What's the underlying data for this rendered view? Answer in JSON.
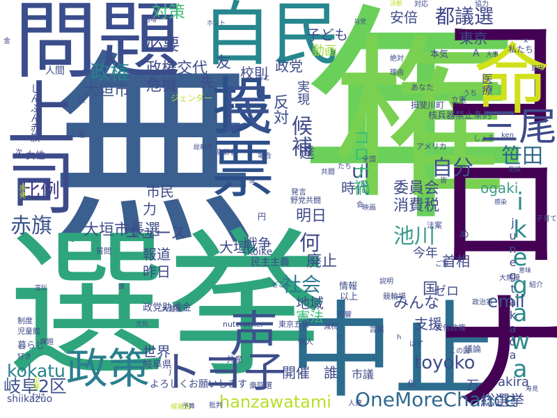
{
  "title": "",
  "words": [
    {
      "text": "無",
      "color": "#3b5f8f",
      "vertical": false
    },
    {
      "text": "選挙",
      "color": "#2fa57d",
      "vertical": false
    },
    {
      "text": "年",
      "color": "#6ad05a",
      "vertical": false
    },
    {
      "text": "問題",
      "color": "#3a4d8c",
      "vertical": false
    },
    {
      "text": "自民",
      "color": "#27878e",
      "vertical": false
    },
    {
      "text": "権",
      "color": "#7ad151",
      "vertical": true
    },
    {
      "text": "中止",
      "color": "#2c6d8e",
      "vertical": false
    },
    {
      "text": "コロナ",
      "color": "#440154",
      "vertical": true
    },
    {
      "text": "命",
      "color": "#d0e11c",
      "vertical": false
    },
    {
      "text": "投票",
      "color": "#2c4f8a",
      "vertical": true
    },
    {
      "text": "上司",
      "color": "#3b4b8a",
      "vertical": true
    },
    {
      "text": "民",
      "color": "#3a5290",
      "vertical": false
    },
    {
      "text": "政策",
      "color": "#2a7f8e",
      "vertical": false
    },
    {
      "text": "トヨ子",
      "color": "#3e4c8a",
      "vertical": false
    },
    {
      "text": "声",
      "color": "#3b528b",
      "vertical": false
    },
    {
      "text": "OneMoreChance",
      "color": "#31688e",
      "vertical": false
    },
    {
      "text": "hanzawatami",
      "color": "#b8de29",
      "vertical": false
    },
    {
      "text": "三尾",
      "color": "#3e4a89",
      "vertical": false
    },
    {
      "text": "ikegawa",
      "color": "#2c8a8c",
      "vertical": true
    },
    {
      "text": "都議選",
      "color": "#3f4788",
      "vertical": false
    },
    {
      "text": "笹田",
      "color": "#31688e",
      "vertical": false
    },
    {
      "text": "自分",
      "color": "#3b518b",
      "vertical": false
    },
    {
      "text": "ul",
      "color": "#3e4989",
      "vertical": false
    },
    {
      "text": "比例",
      "color": "#433d84",
      "vertical": false
    },
    {
      "text": "赤旗",
      "color": "#3b528b",
      "vertical": false
    },
    {
      "text": "岐阜2区",
      "color": "#3b528b",
      "vertical": false
    },
    {
      "text": "kokatu",
      "color": "#26828e",
      "vertical": false
    },
    {
      "text": "toyoko",
      "color": "#3e4c8a",
      "vertical": false
    },
    {
      "text": "emil",
      "color": "#3b528b",
      "vertical": false
    },
    {
      "text": "総選挙",
      "color": "#3e4a89",
      "vertical": false
    },
    {
      "text": "池川",
      "color": "#3b9a8a",
      "vertical": false
    },
    {
      "text": "社会",
      "color": "#2a788e",
      "vertical": false
    },
    {
      "text": "何",
      "color": "#3e4a89",
      "vertical": false
    },
    {
      "text": "候補",
      "color": "#3e4c8a",
      "vertical": true
    },
    {
      "text": "政権",
      "color": "#26828e",
      "vertical": false
    },
    {
      "text": "対策",
      "color": "#3aba76",
      "vertical": false
    },
    {
      "text": "必要",
      "color": "#3e4989",
      "vertical": false
    },
    {
      "text": "政権交代",
      "color": "#3e4a89",
      "vertical": false
    },
    {
      "text": "大垣市",
      "color": "#3b528b",
      "vertical": false
    },
    {
      "text": "大垣市長選",
      "color": "#3e4c8a",
      "vertical": false
    },
    {
      "text": "危機",
      "color": "#3e4a89",
      "vertical": false
    },
    {
      "text": "反対",
      "color": "#3a4d8c",
      "vertical": true
    },
    {
      "text": "友",
      "color": "#3b528b",
      "vertical": false
    },
    {
      "text": "先",
      "color": "#3e4a89",
      "vertical": false
    },
    {
      "text": "子ども",
      "color": "#3e4c8a",
      "vertical": false
    },
    {
      "text": "安倍",
      "color": "#3e4c8a",
      "vertical": false
    },
    {
      "text": "東京",
      "color": "#3e4a89",
      "vertical": false
    },
    {
      "text": "校則",
      "color": "#3e4a89",
      "vertical": false
    },
    {
      "text": "政党",
      "color": "#3e4a89",
      "vertical": false
    },
    {
      "text": "実現",
      "color": "#3e4a89",
      "vertical": true
    },
    {
      "text": "動画",
      "color": "#a0da39",
      "vertical": false
    },
    {
      "text": "市民",
      "color": "#3e4a89",
      "vertical": false
    },
    {
      "text": "達",
      "color": "#3e4a89",
      "vertical": false
    },
    {
      "text": "委員会",
      "color": "#3e4a89",
      "vertical": false
    },
    {
      "text": "時代",
      "color": "#3e4a89",
      "vertical": false
    },
    {
      "text": "消費税",
      "color": "#3e4a89",
      "vertical": false
    },
    {
      "text": "コロナ禍",
      "color": "#3aba76",
      "vertical": true
    },
    {
      "text": "ogaki",
      "color": "#3e9a8a",
      "vertical": false
    },
    {
      "text": "明日",
      "color": "#3e4a89",
      "vertical": false
    },
    {
      "text": "ニュース",
      "color": "#3e4a89",
      "vertical": false
    },
    {
      "text": "力",
      "color": "#3e4a89",
      "vertical": false
    },
    {
      "text": "戦争",
      "color": "#3e4a89",
      "vertical": false
    },
    {
      "text": "大垣",
      "color": "#3e4a89",
      "vertical": false
    },
    {
      "text": "報道",
      "color": "#3e4a89",
      "vertical": false
    },
    {
      "text": "昨日",
      "color": "#3e4a89",
      "vertical": false
    },
    {
      "text": "世界",
      "color": "#3e4a89",
      "vertical": false
    },
    {
      "text": "廃止",
      "color": "#3e4a89",
      "vertical": false
    },
    {
      "text": "みんな",
      "color": "#3e4a89",
      "vertical": false
    },
    {
      "text": "地域",
      "color": "#3e4a89",
      "vertical": false
    },
    {
      "text": "憲法",
      "color": "#3aba76",
      "vertical": false
    },
    {
      "text": "支援",
      "color": "#3e4a89",
      "vertical": false
    },
    {
      "text": "首相",
      "color": "#3e4a89",
      "vertical": false
    },
    {
      "text": "今年",
      "color": "#3e4a89",
      "vertical": false
    },
    {
      "text": "junegtakada",
      "color": "#3e4a89",
      "vertical": true
    },
    {
      "text": "国",
      "color": "#3e4a89",
      "vertical": false
    },
    {
      "text": "ゼロ",
      "color": "#3e4a89",
      "vertical": false
    },
    {
      "text": "開催",
      "color": "#3e4a89",
      "vertical": false
    },
    {
      "text": "誰",
      "color": "#3e4a89",
      "vertical": false
    },
    {
      "text": "akira",
      "color": "#3e4a89",
      "vertical": false
    },
    {
      "text": "万",
      "color": "#3e4a89",
      "vertical": false
    },
    {
      "text": "市議",
      "color": "#3e4a89",
      "vertical": false
    },
    {
      "text": "政党助成金",
      "color": "#3e4a89",
      "vertical": false
    },
    {
      "text": "岐阜県",
      "color": "#3e4a89",
      "vertical": false
    },
    {
      "text": "共産",
      "color": "#3e4a89",
      "vertical": false
    },
    {
      "text": "よろしくお願いします",
      "color": "#3e4a89",
      "vertical": false
    },
    {
      "text": "shiikazuo",
      "color": "#3e4a89",
      "vertical": false
    },
    {
      "text": "暮らし",
      "color": "#3e4a89",
      "vertical": false
    },
    {
      "text": "民主主義",
      "color": "#3e4a89",
      "vertical": false
    },
    {
      "text": "koike",
      "color": "#3e4a89",
      "vertical": false
    },
    {
      "text": "東京五輪",
      "color": "#3e4a89",
      "vertical": false
    },
    {
      "text": "以上",
      "color": "#3e4a89",
      "vertical": false
    },
    {
      "text": "情報",
      "color": "#3e4a89",
      "vertical": false
    },
    {
      "text": "女性",
      "color": "#3e4a89",
      "vertical": false
    },
    {
      "text": "人間",
      "color": "#3e4a89",
      "vertical": false
    },
    {
      "text": "しんぶん赤旗",
      "color": "#3e4a89",
      "vertical": true
    },
    {
      "text": "ジェンダー",
      "color": "#b8de29",
      "vertical": false
    },
    {
      "text": "核兵器禁止条約",
      "color": "#3e4a89",
      "vertical": false
    },
    {
      "text": "揖斐川町",
      "color": "#3e4a89",
      "vertical": false
    },
    {
      "text": "医療",
      "color": "#3e4a89",
      "vertical": true
    },
    {
      "text": "アメリカ",
      "color": "#3e4a89",
      "vertical": false
    },
    {
      "text": "本気",
      "color": "#3e4a89",
      "vertical": false
    },
    {
      "text": "私たち",
      "color": "#3e4a89",
      "vertical": false
    },
    {
      "text": "あなた",
      "color": "#3e4a89",
      "vertical": false
    },
    {
      "text": "立憲",
      "color": "#3e4a89",
      "vertical": false
    },
    {
      "text": "質問",
      "color": "#3e4a89",
      "vertical": false
    },
    {
      "text": "発言",
      "color": "#3e4a89",
      "vertical": false
    },
    {
      "text": "野党共闘",
      "color": "#3e4a89",
      "vertical": false
    },
    {
      "text": "競輪場",
      "color": "#3e4a89",
      "vertical": false
    },
    {
      "text": "法案",
      "color": "#3e4a89",
      "vertical": false
    },
    {
      "text": "大垣駅",
      "color": "#3e4a89",
      "vertical": false
    },
    {
      "text": "nutcracker",
      "color": "#3e4a89",
      "vertical": false
    },
    {
      "text": "議論",
      "color": "#3e4a89",
      "vertical": false
    },
    {
      "text": "安倍政権",
      "color": "#3e4a89",
      "vertical": false
    },
    {
      "text": "政治家",
      "color": "#3e4a89",
      "vertical": false
    },
    {
      "text": "子育て",
      "color": "#3e4a89",
      "vertical": false
    },
    {
      "text": "高齢者",
      "color": "#3e4a89",
      "vertical": false
    },
    {
      "text": "総裁選",
      "color": "#3e4a89",
      "vertical": false
    },
    {
      "text": "全国",
      "color": "#3e4a89",
      "vertical": false
    },
    {
      "text": "共闘",
      "color": "#3e4a89",
      "vertical": false
    },
    {
      "text": "児童館",
      "color": "#3e4a89",
      "vertical": false
    },
    {
      "text": "課題",
      "color": "#3e4a89",
      "vertical": false
    },
    {
      "text": "制度",
      "color": "#3e4a89",
      "vertical": false
    },
    {
      "text": "衆院選",
      "color": "#3e4a89",
      "vertical": false
    },
    {
      "text": "企業",
      "color": "#b8de29",
      "vertical": true
    },
    {
      "text": "宣伝",
      "color": "#3e4a89",
      "vertical": false
    },
    {
      "text": "文化",
      "color": "#3e4a89",
      "vertical": false
    },
    {
      "text": "言葉",
      "color": "#3e4a89",
      "vertical": false
    },
    {
      "text": "個人",
      "color": "#3e4a89",
      "vertical": false
    },
    {
      "text": "影響",
      "color": "#3e4a89",
      "vertical": false
    },
    {
      "text": "減税",
      "color": "#3e4a89",
      "vertical": false
    },
    {
      "text": "説明",
      "color": "#3e4a89",
      "vertical": false
    },
    {
      "text": "大規模",
      "color": "#3e4a89",
      "vertical": false
    },
    {
      "text": "感染",
      "color": "#3e4a89",
      "vertical": false
    },
    {
      "text": "意味",
      "color": "#3e4a89",
      "vertical": false
    },
    {
      "text": "気候",
      "color": "#3e4a89",
      "vertical": false
    },
    {
      "text": "映画",
      "color": "#3e4a89",
      "vertical": false
    },
    {
      "text": "理由",
      "color": "#3e4a89",
      "vertical": false
    },
    {
      "text": "大事",
      "color": "#3e4a89",
      "vertical": false
    },
    {
      "text": "貧困",
      "color": "#3e4a89",
      "vertical": false
    },
    {
      "text": "協力",
      "color": "#3e4a89",
      "vertical": false
    },
    {
      "text": "対応",
      "color": "#3e4a89",
      "vertical": false
    },
    {
      "text": "決断",
      "color": "#b8de29",
      "vertical": false
    },
    {
      "text": "与党",
      "color": "#3e4a89",
      "vertical": false
    },
    {
      "text": "絶対",
      "color": "#3e4a89",
      "vertical": false
    },
    {
      "text": "倍増",
      "color": "#3e4a89",
      "vertical": false
    },
    {
      "text": "ホント",
      "color": "#3e4a89",
      "vertical": false
    },
    {
      "text": "金",
      "color": "#3e4a89",
      "vertical": false
    },
    {
      "text": "A",
      "color": "#3e4a89",
      "vertical": false
    },
    {
      "text": "x",
      "color": "#3e4a89",
      "vertical": false
    },
    {
      "text": "わけ",
      "color": "#3e4a89",
      "vertical": false
    },
    {
      "text": "候補者",
      "color": "#b8de29",
      "vertical": false
    },
    {
      "text": "人達",
      "color": "#3e4a89",
      "vertical": false
    },
    {
      "text": "批判",
      "color": "#3e4a89",
      "vertical": false
    },
    {
      "text": "予算",
      "color": "#3e4a89",
      "vertical": false
    },
    {
      "text": "ご覧",
      "color": "#3e4a89",
      "vertical": false
    },
    {
      "text": "紹介",
      "color": "#3e4a89",
      "vertical": false
    },
    {
      "text": "寿見",
      "color": "#3e4a89",
      "vertical": false
    },
    {
      "text": "この国",
      "color": "#3e4a89",
      "vertical": false
    },
    {
      "text": "はず",
      "color": "#3e4a89",
      "vertical": false
    },
    {
      "text": "ken",
      "color": "#3e4a89",
      "vertical": false
    },
    {
      "text": "しょう",
      "color": "#3e4a89",
      "vertical": false
    },
    {
      "text": "あと",
      "color": "#3e4a89",
      "vertical": false
    },
    {
      "text": "場合",
      "color": "#3e4a89",
      "vertical": false
    },
    {
      "text": "どこ",
      "color": "#3e4a89",
      "vertical": false
    },
    {
      "text": "好き",
      "color": "#3e4a89",
      "vertical": false
    },
    {
      "text": "円",
      "color": "#3e4a89",
      "vertical": false
    },
    {
      "text": "め",
      "color": "#3e4a89",
      "vertical": false
    },
    {
      "text": "化",
      "color": "#3e4a89",
      "vertical": false
    },
    {
      "text": "J",
      "color": "#3e4a89",
      "vertical": false
    },
    {
      "text": "h",
      "color": "#3e4a89",
      "vertical": false
    },
    {
      "text": "U",
      "color": "#3e4a89",
      "vertical": false
    },
    {
      "text": "次",
      "color": "#3e4a89",
      "vertical": false
    },
    {
      "text": "選",
      "color": "#3e4a89",
      "vertical": false
    },
    {
      "text": "たち",
      "color": "#3e4a89",
      "vertical": false
    },
    {
      "text": "会",
      "color": "#3e4a89",
      "vertical": false
    },
    {
      "text": "後",
      "color": "#3e4a89",
      "vertical": false
    },
    {
      "text": "皆",
      "color": "#3e4a89",
      "vertical": false
    },
    {
      "text": "うち",
      "color": "#3e4a89",
      "vertical": false
    },
    {
      "text": "区",
      "color": "#3e4a89",
      "vertical": false
    },
    {
      "text": "そ",
      "color": "#3e4a89",
      "vertical": false
    },
    {
      "text": "原発",
      "color": "#b8de29",
      "vertical": true
    },
    {
      "text": "議",
      "color": "#3e4a89",
      "vertical": false
    }
  ]
}
